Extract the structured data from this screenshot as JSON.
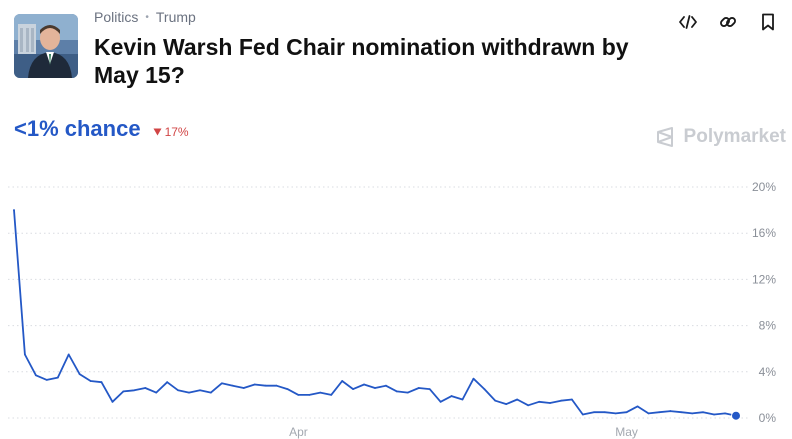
{
  "breadcrumbs": [
    "Politics",
    "Trump"
  ],
  "title": "Kevin Warsh Fed Chair nomination withdrawn by May 15?",
  "chance_label": "<1% chance",
  "change_label": "17%",
  "brand": "Polymarket",
  "icons": {
    "embed": "code-icon",
    "link": "link-icon",
    "bookmark": "bookmark-icon",
    "change": "triangle-down-icon",
    "brand": "polymarket-logo-icon"
  },
  "colors": {
    "line": "#2458c6",
    "down": "#d14545",
    "grid": "#d9dce1"
  },
  "chart_data": {
    "type": "line",
    "y_unit": "%",
    "ylim": [
      0,
      20
    ],
    "y_ticks": [
      0,
      4,
      8,
      12,
      16,
      20
    ],
    "y_tick_labels": [
      "0%",
      "4%",
      "8%",
      "12%",
      "16%",
      "20%"
    ],
    "x_tick_labels": [
      "Apr",
      "May"
    ],
    "x_tick_dates": [
      "2026-04-01",
      "2026-05-01"
    ],
    "grid": true,
    "x": [
      "2026-03-06",
      "2026-03-07",
      "2026-03-08",
      "2026-03-09",
      "2026-03-10",
      "2026-03-11",
      "2026-03-12",
      "2026-03-13",
      "2026-03-14",
      "2026-03-15",
      "2026-03-16",
      "2026-03-17",
      "2026-03-18",
      "2026-03-19",
      "2026-03-20",
      "2026-03-21",
      "2026-03-22",
      "2026-03-23",
      "2026-03-24",
      "2026-03-25",
      "2026-03-26",
      "2026-03-27",
      "2026-03-28",
      "2026-03-29",
      "2026-03-30",
      "2026-03-31",
      "2026-04-01",
      "2026-04-02",
      "2026-04-03",
      "2026-04-04",
      "2026-04-05",
      "2026-04-06",
      "2026-04-07",
      "2026-04-08",
      "2026-04-09",
      "2026-04-10",
      "2026-04-11",
      "2026-04-12",
      "2026-04-13",
      "2026-04-14",
      "2026-04-15",
      "2026-04-16",
      "2026-04-17",
      "2026-04-18",
      "2026-04-19",
      "2026-04-20",
      "2026-04-21",
      "2026-04-22",
      "2026-04-23",
      "2026-04-24",
      "2026-04-25",
      "2026-04-26",
      "2026-04-27",
      "2026-04-28",
      "2026-04-29",
      "2026-04-30",
      "2026-05-01",
      "2026-05-02",
      "2026-05-03",
      "2026-05-04",
      "2026-05-05",
      "2026-05-06",
      "2026-05-07",
      "2026-05-08",
      "2026-05-09",
      "2026-05-10",
      "2026-05-11"
    ],
    "y": [
      18.0,
      5.5,
      3.7,
      3.3,
      3.5,
      5.5,
      3.8,
      3.2,
      3.1,
      1.4,
      2.3,
      2.4,
      2.6,
      2.2,
      3.1,
      2.4,
      2.2,
      2.4,
      2.2,
      3.0,
      2.8,
      2.6,
      2.9,
      2.8,
      2.8,
      2.5,
      2.0,
      2.0,
      2.2,
      2.0,
      3.2,
      2.5,
      2.9,
      2.6,
      2.8,
      2.3,
      2.2,
      2.6,
      2.5,
      1.4,
      1.9,
      1.6,
      3.4,
      2.5,
      1.5,
      1.2,
      1.6,
      1.1,
      1.4,
      1.3,
      1.5,
      1.6,
      0.3,
      0.5,
      0.5,
      0.4,
      0.5,
      1.0,
      0.4,
      0.5,
      0.6,
      0.5,
      0.4,
      0.5,
      0.3,
      0.4,
      0.2
    ]
  }
}
